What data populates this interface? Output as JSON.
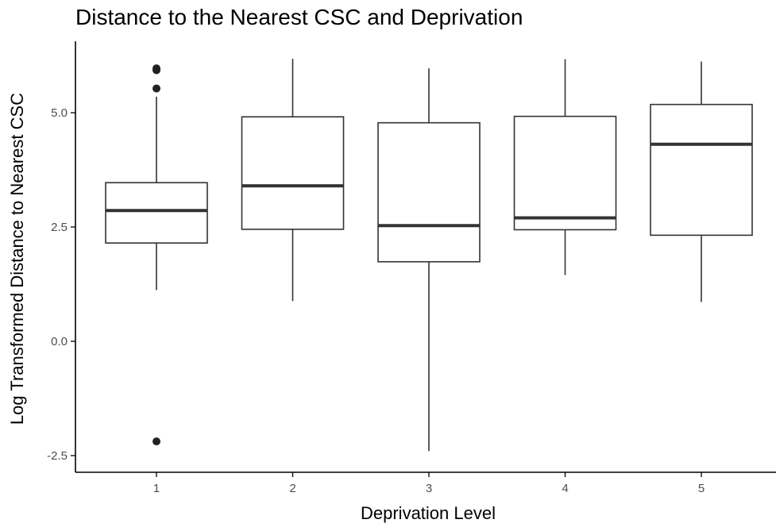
{
  "chart_data": {
    "type": "boxplot",
    "title": "Distance to the Nearest CSC and Deprivation",
    "xlabel": "Deprivation Level",
    "ylabel": "Log Transformed Distance to Nearest CSC",
    "categories": [
      "1",
      "2",
      "3",
      "4",
      "5"
    ],
    "y_ticks": [
      -2.5,
      0.0,
      2.5,
      5.0
    ],
    "y_tick_labels": [
      "-2.5",
      "0.0",
      "2.5",
      "5.0"
    ],
    "ylim": [
      -2.85,
      6.6
    ],
    "grid": false,
    "legend": "none",
    "boxes": [
      {
        "category": "1",
        "whisker_low": 1.12,
        "q1": 2.15,
        "median": 2.86,
        "q3": 3.47,
        "whisker_high": 5.35,
        "outliers": [
          5.93,
          5.97,
          5.53,
          -2.19
        ]
      },
      {
        "category": "2",
        "whisker_low": 0.88,
        "q1": 2.45,
        "median": 3.4,
        "q3": 4.91,
        "whisker_high": 6.18,
        "outliers": []
      },
      {
        "category": "3",
        "whisker_low": -2.4,
        "q1": 1.74,
        "median": 2.53,
        "q3": 4.78,
        "whisker_high": 5.97,
        "outliers": []
      },
      {
        "category": "4",
        "whisker_low": 1.45,
        "q1": 2.44,
        "median": 2.7,
        "q3": 4.92,
        "whisker_high": 6.17,
        "outliers": []
      },
      {
        "category": "5",
        "whisker_low": 0.86,
        "q1": 2.32,
        "median": 4.31,
        "q3": 5.18,
        "whisker_high": 6.12,
        "outliers": []
      }
    ],
    "colors": {
      "box_fill": "#ffffff",
      "line": "#333333",
      "outlier": "#222222",
      "axis": "#000000",
      "tick_text": "#4d4d4d",
      "title": "#000000"
    }
  }
}
